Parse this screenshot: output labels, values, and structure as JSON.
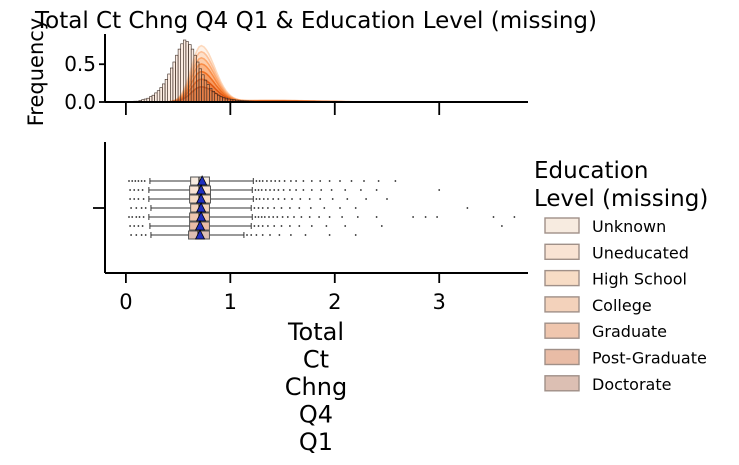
{
  "chart_data": {
    "type": "histogram+boxplot",
    "title": "Total Ct Chng Q4 Q1 & Education Level (missing)",
    "xlabel_lines": [
      "Total",
      "Ct",
      "Chng",
      "Q4",
      "Q1"
    ],
    "top_ylabel": "Frequency",
    "xlim": [
      -0.2,
      3.85
    ],
    "x_ticks": [
      0,
      1,
      2,
      3
    ],
    "top_ylim": [
      0,
      0.9
    ],
    "top_y_ticks": [
      0.0,
      0.5
    ],
    "top_y_tick_labels": [
      "0.0",
      "0.5"
    ],
    "legend_title_lines": [
      "Education",
      "Level (missing)"
    ],
    "legend_placement": "right",
    "series": [
      {
        "name": "Unknown",
        "color": "#f7ebe0",
        "q1": 0.62,
        "median": 0.7,
        "q3": 0.8,
        "mean": 0.73,
        "wmin": 0.23,
        "wmax": 1.22,
        "outliers": [
          0.03,
          0.06,
          0.09,
          0.12,
          0.15,
          0.18,
          1.25,
          1.28,
          1.31,
          1.35,
          1.39,
          1.43,
          1.47,
          1.52,
          1.58,
          1.63,
          1.7,
          1.78,
          1.86,
          1.95,
          2.05,
          2.16,
          2.28,
          2.42,
          2.58
        ]
      },
      {
        "name": "Uneducated",
        "color": "#f9e3d3",
        "q1": 0.61,
        "median": 0.7,
        "q3": 0.81,
        "mean": 0.72,
        "wmin": 0.22,
        "wmax": 1.21,
        "outliers": [
          0.04,
          0.08,
          0.12,
          0.16,
          1.24,
          1.27,
          1.3,
          1.34,
          1.38,
          1.42,
          1.46,
          1.51,
          1.57,
          1.63,
          1.7,
          1.78,
          1.87,
          1.97,
          2.1,
          2.25,
          2.4,
          3.0
        ]
      },
      {
        "name": "High School",
        "color": "#f7dcc5",
        "q1": 0.61,
        "median": 0.7,
        "q3": 0.81,
        "mean": 0.72,
        "wmin": 0.22,
        "wmax": 1.22,
        "outliers": [
          0.04,
          0.08,
          0.12,
          0.17,
          1.25,
          1.28,
          1.32,
          1.36,
          1.41,
          1.46,
          1.52,
          1.59,
          1.67,
          1.76,
          1.86,
          1.98,
          2.12,
          2.3,
          2.5
        ]
      },
      {
        "name": "College",
        "color": "#f3d2bb",
        "q1": 0.62,
        "median": 0.7,
        "q3": 0.8,
        "mean": 0.72,
        "wmin": 0.24,
        "wmax": 1.2,
        "outliers": [
          0.05,
          0.1,
          0.15,
          0.19,
          1.23,
          1.27,
          1.31,
          1.36,
          1.42,
          1.49,
          1.57,
          1.66,
          1.77,
          1.9,
          2.05,
          2.2,
          3.27
        ]
      },
      {
        "name": "Graduate",
        "color": "#efc6ae",
        "q1": 0.61,
        "median": 0.7,
        "q3": 0.8,
        "mean": 0.72,
        "wmin": 0.22,
        "wmax": 1.21,
        "outliers": [
          0.03,
          0.06,
          0.1,
          0.13,
          0.17,
          1.24,
          1.27,
          1.3,
          1.33,
          1.37,
          1.41,
          1.45,
          1.5,
          1.55,
          1.61,
          1.68,
          1.76,
          1.85,
          1.95,
          2.07,
          2.22,
          2.4,
          2.75,
          2.87,
          2.98,
          3.52,
          3.72
        ]
      },
      {
        "name": "Post-Graduate",
        "color": "#e9bca6",
        "q1": 0.61,
        "median": 0.7,
        "q3": 0.8,
        "mean": 0.71,
        "wmin": 0.23,
        "wmax": 1.2,
        "outliers": [
          0.04,
          0.08,
          0.12,
          0.16,
          1.23,
          1.27,
          1.31,
          1.36,
          1.42,
          1.49,
          1.57,
          1.66,
          1.78,
          1.92,
          2.1,
          2.45,
          3.6
        ]
      },
      {
        "name": "Doctorate",
        "color": "#dcbfb3",
        "q1": 0.6,
        "median": 0.69,
        "q3": 0.8,
        "mean": 0.71,
        "wmin": 0.24,
        "wmax": 1.13,
        "outliers": [
          0.05,
          0.1,
          0.15,
          0.19,
          1.16,
          1.2,
          1.25,
          1.31,
          1.38,
          1.47,
          1.58,
          1.72,
          1.95,
          2.2
        ]
      }
    ],
    "hist_bins": {
      "start": 0.0,
      "width": 0.025,
      "frequencies": [
        0,
        0,
        0,
        0.01,
        0.01,
        0.02,
        0.03,
        0.04,
        0.05,
        0.07,
        0.09,
        0.12,
        0.15,
        0.19,
        0.24,
        0.3,
        0.37,
        0.45,
        0.53,
        0.62,
        0.7,
        0.77,
        0.82,
        0.8,
        0.76,
        0.7,
        0.62,
        0.53,
        0.44,
        0.36,
        0.29,
        0.23,
        0.18,
        0.14,
        0.11,
        0.09,
        0.07,
        0.06,
        0.05,
        0.04,
        0.035,
        0.03,
        0.025,
        0.02,
        0.018,
        0.016,
        0.014,
        0.012,
        0.01,
        0.009,
        0.008,
        0.007,
        0.006,
        0.005,
        0.004,
        0.004,
        0.003,
        0.003,
        0.002,
        0.002
      ]
    },
    "kde_peaks": [
      0.74,
      0.66,
      0.58,
      0.5,
      0.4,
      0.3,
      0.2
    ],
    "kde_colors": [
      "#fdd9bd",
      "#fdbf96",
      "#fda86e",
      "#f98d48",
      "#f06f22",
      "#de5611",
      "#c24106"
    ]
  }
}
